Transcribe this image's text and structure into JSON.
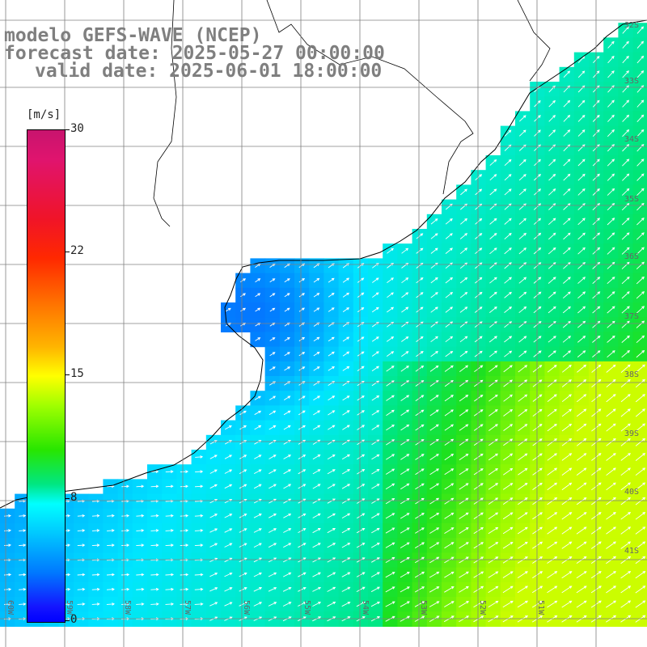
{
  "title": {
    "line1": "modelo GEFS-WAVE (NCEP)",
    "line2": "forecast date: 2025-05-27 00:00:00",
    "line3": "valid date: 2025-06-01 18:00:00"
  },
  "colorbar": {
    "unit": "[m/s]",
    "tick_labels": [
      "30",
      "22",
      "15",
      "8",
      "0"
    ],
    "tick_values": [
      30,
      22,
      15,
      8,
      0
    ],
    "min": 0,
    "max": 30
  },
  "lat_labels": [
    "32S",
    "33S",
    "34S",
    "35S",
    "36S",
    "37S",
    "38S",
    "39S",
    "40S",
    "41S"
  ],
  "lon_labels": [
    "60W",
    "59W",
    "58W",
    "57W",
    "56W",
    "55W",
    "54W",
    "53W",
    "52W",
    "51W"
  ],
  "colors": {
    "title": "#7f7f7f",
    "grid": "#808080",
    "coast": "#000000",
    "arrows": "#ffffff"
  },
  "map": {
    "variable": "wind speed",
    "description_scale": "colors by speed, arrows by direction"
  }
}
